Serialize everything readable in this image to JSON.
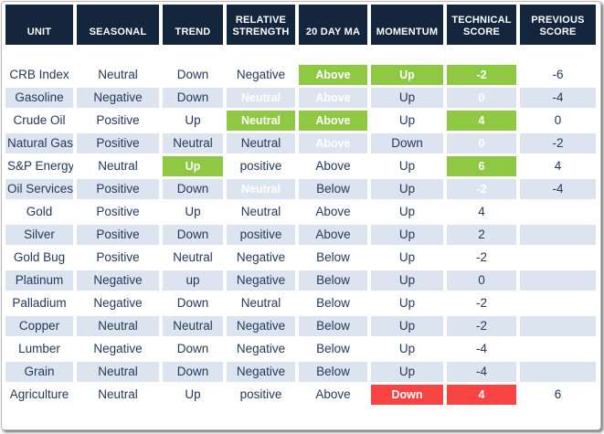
{
  "colors": {
    "header_bg": "#13263E",
    "alt_row_bg": "#DCE4F0",
    "highlight_green": "#8FC843",
    "highlight_red": "#F84442",
    "cell_text": "#24395B",
    "header_text": "#FFFFFF"
  },
  "chart_data": {
    "type": "table",
    "columns": [
      "UNIT",
      "SEASONAL",
      "TREND",
      "RELATIVE STRENGTH",
      "20 DAY MA",
      "MOMENTUM",
      "TECHNICAL SCORE",
      "PREVIOUS SCORE"
    ],
    "rows": [
      {
        "cells": [
          "CRB Index",
          "Neutral",
          "Down",
          "Negative",
          "Above",
          "Up",
          "-2",
          "-6"
        ],
        "fills": [
          null,
          null,
          null,
          null,
          "green",
          "green",
          "green",
          null
        ]
      },
      {
        "cells": [
          "Gasoline",
          "Negative",
          "Down",
          "Neutral",
          "Above",
          "Up",
          "0",
          "-4"
        ],
        "fills": [
          null,
          null,
          null,
          "green",
          "green",
          null,
          "green",
          null
        ]
      },
      {
        "cells": [
          "Crude Oil",
          "Positive",
          "Up",
          "Neutral",
          "Above",
          "Up",
          "4",
          "0"
        ],
        "fills": [
          null,
          null,
          null,
          "green",
          "green",
          null,
          "green",
          null
        ]
      },
      {
        "cells": [
          "Natural Gas",
          "Positive",
          "Neutral",
          "Neutral",
          "Above",
          "Down",
          "0",
          "-2"
        ],
        "fills": [
          null,
          null,
          null,
          null,
          "green",
          null,
          "green",
          null
        ]
      },
      {
        "cells": [
          "S&P Energy",
          "Neutral",
          "Up",
          "positive",
          "Above",
          "Up",
          "6",
          "4"
        ],
        "fills": [
          null,
          null,
          "green",
          null,
          null,
          null,
          "green",
          null
        ]
      },
      {
        "cells": [
          "Oil Services",
          "Positive",
          "Down",
          "Neutral",
          "Below",
          "Up",
          "-2",
          "-4"
        ],
        "fills": [
          null,
          null,
          null,
          "green",
          null,
          null,
          "green",
          null
        ]
      },
      {
        "cells": [
          "Gold",
          "Positive",
          "Up",
          "Neutral",
          "Above",
          "Up",
          "4",
          ""
        ],
        "fills": [
          null,
          null,
          null,
          null,
          null,
          null,
          null,
          null
        ]
      },
      {
        "cells": [
          "Silver",
          "Positive",
          "Down",
          "positive",
          "Above",
          "Up",
          "2",
          ""
        ],
        "fills": [
          null,
          null,
          null,
          null,
          null,
          null,
          null,
          null
        ]
      },
      {
        "cells": [
          "Gold Bug",
          "Positive",
          "Neutral",
          "Negative",
          "Below",
          "Up",
          "-2",
          ""
        ],
        "fills": [
          null,
          null,
          null,
          null,
          null,
          null,
          null,
          null
        ]
      },
      {
        "cells": [
          "Platinum",
          "Negative",
          "up",
          "Negative",
          "Below",
          "Up",
          "0",
          ""
        ],
        "fills": [
          null,
          null,
          null,
          null,
          null,
          null,
          null,
          null
        ]
      },
      {
        "cells": [
          "Palladium",
          "Negative",
          "Down",
          "Neutral",
          "Below",
          "Up",
          "-2",
          ""
        ],
        "fills": [
          null,
          null,
          null,
          null,
          null,
          null,
          null,
          null
        ]
      },
      {
        "cells": [
          "Copper",
          "Neutral",
          "Neutral",
          "Negative",
          "Below",
          "Up",
          "-2",
          ""
        ],
        "fills": [
          null,
          null,
          null,
          null,
          null,
          null,
          null,
          null
        ]
      },
      {
        "cells": [
          "Lumber",
          "Negative",
          "Down",
          "Negative",
          "Below",
          "Up",
          "-4",
          ""
        ],
        "fills": [
          null,
          null,
          null,
          null,
          null,
          null,
          null,
          null
        ]
      },
      {
        "cells": [
          "Grain",
          "Neutral",
          "Down",
          "Negative",
          "Below",
          "Up",
          "-4",
          ""
        ],
        "fills": [
          null,
          null,
          null,
          null,
          null,
          null,
          null,
          null
        ]
      },
      {
        "cells": [
          "Agriculture",
          "Neutral",
          "Up",
          "positive",
          "Above",
          "Down",
          "4",
          "6"
        ],
        "fills": [
          null,
          null,
          null,
          null,
          null,
          "red",
          "red",
          null
        ]
      }
    ]
  }
}
